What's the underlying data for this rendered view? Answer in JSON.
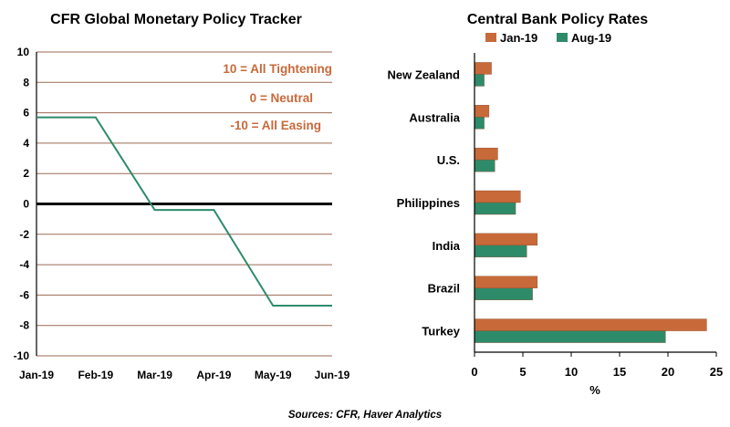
{
  "colors": {
    "orange": "#C8693A",
    "green": "#2E8B6A",
    "grid": "#9B6A55",
    "axis": "#000000"
  },
  "chart_data": [
    {
      "type": "line",
      "title": "CFR Global Monetary Policy Tracker",
      "x": [
        "Jan-19",
        "Feb-19",
        "Mar-19",
        "Apr-19",
        "May-19",
        "Jun-19"
      ],
      "series": [
        {
          "values": [
            5.7,
            5.7,
            -0.4,
            -0.4,
            -6.7,
            -6.7
          ]
        }
      ],
      "ylim": [
        -10,
        10
      ],
      "yticks": [
        "10",
        "8",
        "6",
        "4",
        "2",
        "0",
        "-2",
        "-4",
        "-6",
        "-8",
        "-10"
      ],
      "annotations": [
        "10 = All Tightening",
        "0 = Neutral",
        "-10 = All Easing"
      ],
      "xlabel": "",
      "ylabel": ""
    },
    {
      "type": "bar",
      "orientation": "horizontal",
      "title": "Central Bank Policy Rates",
      "categories": [
        "New Zealand",
        "Australia",
        "U.S.",
        "Philippines",
        "India",
        "Brazil",
        "Turkey"
      ],
      "series": [
        {
          "name": "Jan-19",
          "values": [
            1.75,
            1.5,
            2.4,
            4.75,
            6.5,
            6.5,
            24.0
          ]
        },
        {
          "name": "Aug-19",
          "values": [
            1.0,
            1.0,
            2.1,
            4.25,
            5.4,
            6.0,
            19.75
          ]
        }
      ],
      "xlim": [
        0,
        25
      ],
      "xticks": [
        "0",
        "5",
        "10",
        "15",
        "20",
        "25"
      ],
      "xlabel": "%",
      "legend": "top"
    }
  ],
  "source": "Sources: CFR, Haver Analytics"
}
